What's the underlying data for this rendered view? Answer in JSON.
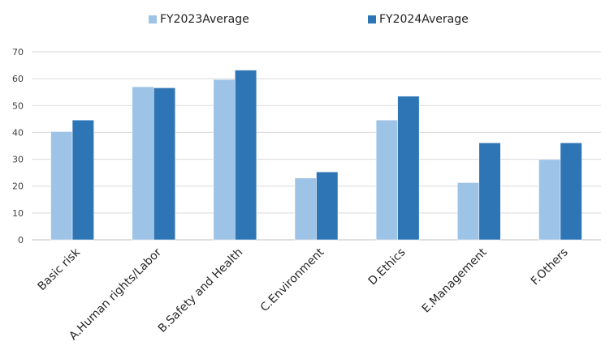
{
  "chart_data": {
    "type": "bar",
    "categories": [
      "Basic risk",
      "A.Human rights/Labor",
      "B.Safety and Health",
      "C.Environment",
      "D.Ethics",
      "E.Management",
      "F.Others"
    ],
    "series": [
      {
        "name": "FY2023Average",
        "color": "#9dc3e6",
        "values": [
          40.3,
          57.0,
          59.7,
          23.0,
          44.6,
          21.3,
          29.9
        ]
      },
      {
        "name": "FY2024Average",
        "color": "#2e75b6",
        "values": [
          44.6,
          56.6,
          63.2,
          25.3,
          53.5,
          36.1,
          36.1
        ]
      }
    ],
    "yticks": [
      0,
      10,
      20,
      30,
      40,
      50,
      60,
      70
    ],
    "ylim": [
      0,
      70
    ],
    "grid": true,
    "legend_position": "top"
  }
}
